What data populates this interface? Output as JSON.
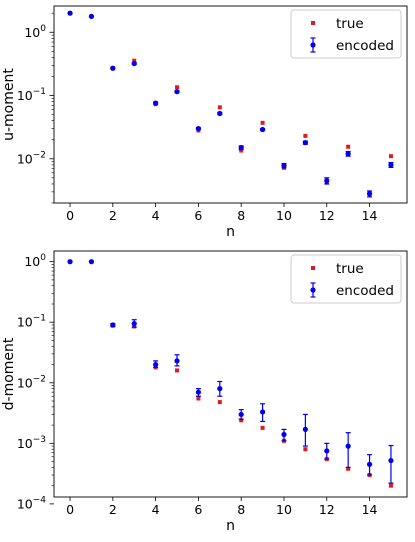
{
  "chart_data": [
    {
      "type": "scatter",
      "title": "",
      "xlabel": "n",
      "ylabel": "u-moment",
      "yscale": "log",
      "xlim": [
        -0.75,
        15.75
      ],
      "ylim": [
        0.002,
        2.6
      ],
      "xticks": [
        0,
        2,
        4,
        6,
        8,
        10,
        12,
        14
      ],
      "yticks": [
        {
          "value": 0.01,
          "base": "10",
          "exp": "−2"
        },
        {
          "value": 0.1,
          "base": "10",
          "exp": "−1"
        },
        {
          "value": 1,
          "base": "10",
          "exp": "0"
        }
      ],
      "legend": "top-right",
      "series": [
        {
          "name": "true",
          "color": "#e31a1c",
          "marker": "square",
          "x": [
            0,
            1,
            2,
            3,
            4,
            5,
            6,
            7,
            8,
            9,
            10,
            11,
            12,
            13,
            14,
            15
          ],
          "y": [
            2.0,
            1.78,
            0.27,
            0.355,
            0.073,
            0.135,
            0.028,
            0.065,
            0.0135,
            0.037,
            0.0072,
            0.023,
            0.0042,
            0.0155,
            0.0028,
            0.011
          ]
        },
        {
          "name": "encoded",
          "color": "#0000ee",
          "marker": "circle",
          "errorbars": true,
          "x": [
            0,
            1,
            2,
            3,
            4,
            5,
            6,
            7,
            8,
            9,
            10,
            11,
            12,
            13,
            14,
            15
          ],
          "y": [
            2.0,
            1.78,
            0.27,
            0.32,
            0.076,
            0.115,
            0.03,
            0.052,
            0.015,
            0.029,
            0.0078,
            0.018,
            0.0045,
            0.012,
            0.0028,
            0.008
          ],
          "err": [
            0.02,
            0.02,
            0.005,
            0.01,
            0.003,
            0.004,
            0.001,
            0.002,
            0.001,
            0.001,
            0.0006,
            0.001,
            0.0005,
            0.001,
            0.0003,
            0.0007
          ]
        }
      ]
    },
    {
      "type": "scatter",
      "title": "",
      "xlabel": "n",
      "ylabel": "d-moment",
      "yscale": "log",
      "xlim": [
        -0.75,
        15.75
      ],
      "ylim": [
        0.00013,
        1.5
      ],
      "xticks": [
        0,
        2,
        4,
        6,
        8,
        10,
        12,
        14
      ],
      "yticks": [
        {
          "value": 0.0001,
          "base": "10",
          "exp": "−4"
        },
        {
          "value": 0.001,
          "base": "10",
          "exp": "−3"
        },
        {
          "value": 0.01,
          "base": "10",
          "exp": "−2"
        },
        {
          "value": 0.1,
          "base": "10",
          "exp": "−1"
        },
        {
          "value": 1,
          "base": "10",
          "exp": "0"
        }
      ],
      "legend": "top-right",
      "series": [
        {
          "name": "true",
          "color": "#e31a1c",
          "marker": "square",
          "x": [
            0,
            1,
            2,
            3,
            4,
            5,
            6,
            7,
            8,
            9,
            10,
            11,
            12,
            13,
            14,
            15
          ],
          "y": [
            1.0,
            1.0,
            0.088,
            0.085,
            0.018,
            0.016,
            0.0055,
            0.0048,
            0.0024,
            0.0018,
            0.0011,
            0.0008,
            0.00055,
            0.00038,
            0.0003,
            0.0002
          ]
        },
        {
          "name": "encoded",
          "color": "#0000ee",
          "marker": "circle",
          "errorbars": true,
          "x": [
            0,
            1,
            2,
            3,
            4,
            5,
            6,
            7,
            8,
            9,
            10,
            11,
            12,
            13,
            14,
            15
          ],
          "y": [
            1.0,
            1.0,
            0.09,
            0.095,
            0.02,
            0.023,
            0.007,
            0.008,
            0.003,
            0.0033,
            0.0014,
            0.0017,
            0.00075,
            0.0009,
            0.00045,
            0.00052
          ],
          "err_low": [
            0.01,
            0.01,
            0.005,
            0.012,
            0.002,
            0.004,
            0.001,
            0.002,
            0.0005,
            0.001,
            0.0003,
            0.0008,
            0.0002,
            0.0005,
            0.00015,
            0.0003
          ],
          "err_high": [
            0.01,
            0.01,
            0.005,
            0.015,
            0.003,
            0.006,
            0.001,
            0.0025,
            0.0006,
            0.0012,
            0.0003,
            0.0013,
            0.00025,
            0.0006,
            0.0002,
            0.0004
          ]
        }
      ]
    }
  ]
}
